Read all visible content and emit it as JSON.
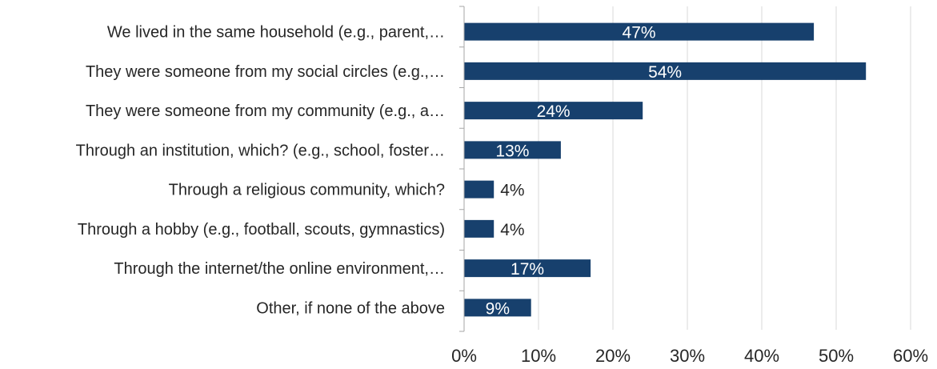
{
  "chart_data": {
    "type": "bar",
    "orientation": "horizontal",
    "categories": [
      "We lived in the same household (e.g., parent,…",
      "They were someone from my social circles (e.g.,…",
      "They were someone from my community (e.g., a…",
      "Through an institution, which? (e.g., school, foster…",
      "Through a religious community, which?",
      "Through a hobby (e.g., football, scouts, gymnastics)",
      "Through the internet/the online environment,…",
      "Other, if none of the above"
    ],
    "values": [
      47,
      54,
      24,
      13,
      4,
      4,
      17,
      9
    ],
    "data_labels": [
      "47%",
      "54%",
      "24%",
      "13%",
      "4%",
      "4%",
      "17%",
      "9%"
    ],
    "xlim": [
      0,
      60
    ],
    "xticks": [
      "0%",
      "10%",
      "20%",
      "30%",
      "40%",
      "50%",
      "60%"
    ],
    "grid": true,
    "legend": "none",
    "bar_color": "#17406D"
  }
}
